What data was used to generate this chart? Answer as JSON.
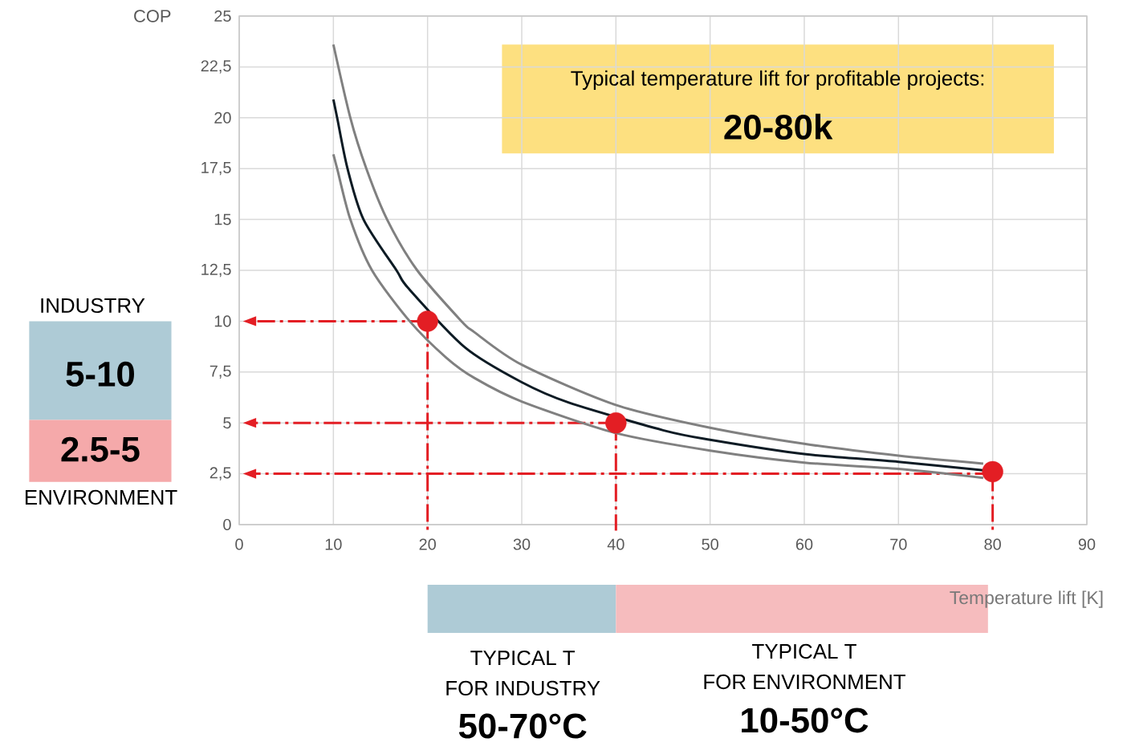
{
  "chart_data": {
    "type": "line",
    "xlabel": "Temperature lift [K]",
    "ylabel": "COP",
    "xlim": [
      0,
      90
    ],
    "ylim": [
      0,
      25
    ],
    "xticks": [
      0,
      10,
      20,
      30,
      40,
      50,
      60,
      70,
      80,
      90
    ],
    "yticks": [
      0,
      {
        "value": 2.5,
        "label": "2,5"
      },
      5,
      {
        "value": 7.5,
        "label": "7,5"
      },
      10,
      {
        "value": 12.5,
        "label": "12,5"
      },
      15,
      {
        "value": 17.5,
        "label": "17,5"
      },
      20,
      {
        "value": 22.5,
        "label": "22,5"
      },
      25
    ],
    "grid": true,
    "series": [
      {
        "color": "#808080",
        "x": [
          10,
          11.8,
          13.5,
          15.7,
          18.9,
          23.6,
          25,
          30,
          40,
          50,
          60,
          70,
          79
        ],
        "values": [
          23.6,
          20,
          17.5,
          15,
          12.5,
          10,
          9.45,
          7.86,
          5.88,
          4.76,
          3.97,
          3.39,
          3.0
        ]
      },
      {
        "color": "#0d1b24",
        "x": [
          10,
          10.4,
          11.5,
          13.2,
          16.7,
          18,
          24,
          30,
          35,
          45,
          50,
          60,
          70,
          79
        ],
        "values": [
          20.9,
          20,
          17.5,
          15,
          12.5,
          11.6,
          8.7,
          7.0,
          6.0,
          4.64,
          4.17,
          3.47,
          3.09,
          2.67
        ]
      },
      {
        "color": "#808080",
        "x": [
          10,
          10.4,
          11.8,
          14.1,
          18.1,
          22,
          25,
          30,
          40,
          50,
          60,
          70,
          79
        ],
        "values": [
          18.2,
          17.5,
          15,
          12.5,
          10,
          8.2,
          7.2,
          6.05,
          4.5,
          3.64,
          3.05,
          2.74,
          2.3
        ]
      },
      {
        "type": "scatter",
        "marker": "circle",
        "color": "#e31e24",
        "x": [
          20,
          40,
          80
        ],
        "values": [
          10,
          5,
          2.6
        ]
      }
    ],
    "ref_lines": [
      {
        "axis": "y",
        "value": 10,
        "color": "#e31e24"
      },
      {
        "axis": "y",
        "value": 5,
        "color": "#e31e24"
      },
      {
        "axis": "y",
        "value": 2.5,
        "color": "#e31e24"
      },
      {
        "axis": "x",
        "value": 20,
        "color": "#e31e24"
      },
      {
        "axis": "x",
        "value": 40,
        "color": "#e31e24"
      },
      {
        "axis": "x",
        "value": 80,
        "color": "#e31e24"
      }
    ],
    "annotations": [
      "Typical temperature lift for profitable projects:",
      "20-80k",
      "INDUSTRY",
      "5-10",
      "2.5-5",
      "ENVIRONMENT",
      "TYPICAL T",
      "FOR INDUSTRY",
      "50-70°C",
      "TYPICAL T",
      "FOR ENVIRONMENT",
      "10-50°C"
    ]
  }
}
